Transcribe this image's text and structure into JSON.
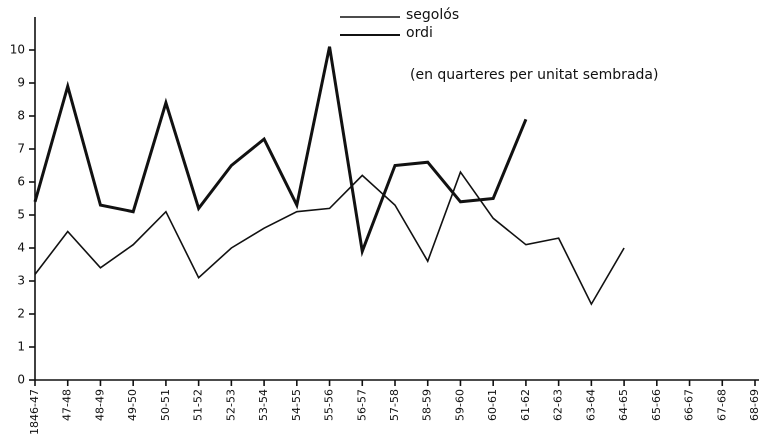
{
  "chart_data": {
    "type": "line",
    "annotation": "(en quarteres per unitat sembrada)",
    "categories": [
      "1846-47",
      "47-48",
      "48-49",
      "49-50",
      "50-51",
      "51-52",
      "52-53",
      "53-54",
      "54-55",
      "55-56",
      "56-57",
      "57-58",
      "58-59",
      "59-60",
      "60-61",
      "61-62",
      "62-63",
      "63-64",
      "64-65",
      "65-66",
      "66-67",
      "67-68",
      "68-69"
    ],
    "series": [
      {
        "name": "segolós",
        "color": "#111111",
        "linewidth": 1.6,
        "values": [
          3.2,
          4.5,
          3.4,
          4.1,
          5.1,
          3.1,
          4.0,
          4.6,
          5.1,
          5.2,
          6.2,
          5.3,
          3.6,
          6.3,
          4.9,
          4.1,
          4.3,
          2.3,
          4.0,
          null,
          null,
          null,
          null
        ]
      },
      {
        "name": "ordi",
        "color": "#111111",
        "linewidth": 3,
        "values": [
          5.4,
          8.9,
          5.3,
          5.1,
          8.4,
          5.2,
          6.5,
          7.3,
          5.3,
          10.1,
          3.9,
          6.5,
          6.6,
          5.4,
          5.5,
          7.9,
          null,
          null,
          null,
          null,
          null,
          null,
          null
        ]
      }
    ],
    "ylim": [
      0,
      11
    ],
    "yticks": [
      0,
      1,
      2,
      3,
      4,
      5,
      6,
      7,
      8,
      9,
      10
    ],
    "grid": false
  }
}
